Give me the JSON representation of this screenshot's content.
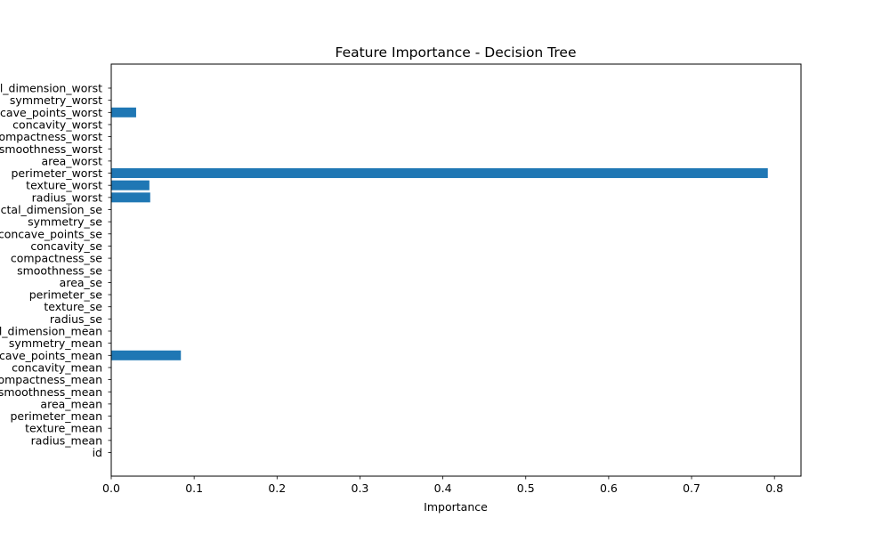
{
  "chart_data": {
    "type": "bar",
    "orientation": "horizontal",
    "title": "Feature Importance - Decision Tree",
    "xlabel": "Importance",
    "ylabel": "",
    "xlim": [
      0,
      0.832
    ],
    "x_ticks": [
      0.0,
      0.1,
      0.2,
      0.3,
      0.4,
      0.5,
      0.6,
      0.7,
      0.8
    ],
    "x_tick_labels": [
      "0.0",
      "0.1",
      "0.2",
      "0.3",
      "0.4",
      "0.5",
      "0.6",
      "0.7",
      "0.8"
    ],
    "grid": false,
    "bar_color": "#1f77b4",
    "categories": [
      "id",
      "radius_mean",
      "texture_mean",
      "perimeter_mean",
      "area_mean",
      "smoothness_mean",
      "compactness_mean",
      "concavity_mean",
      "concave_points_mean",
      "symmetry_mean",
      "fractal_dimension_mean",
      "radius_se",
      "texture_se",
      "perimeter_se",
      "area_se",
      "smoothness_se",
      "compactness_se",
      "concavity_se",
      "concave_points_se",
      "symmetry_se",
      "fractal_dimension_se",
      "radius_worst",
      "texture_worst",
      "perimeter_worst",
      "area_worst",
      "smoothness_worst",
      "compactness_worst",
      "concavity_worst",
      "concave_points_worst",
      "symmetry_worst",
      "fractal_dimension_worst"
    ],
    "values": [
      0,
      0,
      0,
      0,
      0,
      0,
      0,
      0,
      0.084,
      0,
      0,
      0,
      0,
      0,
      0,
      0,
      0,
      0,
      0,
      0,
      0,
      0.047,
      0.046,
      0.792,
      0,
      0,
      0,
      0,
      0.03,
      0,
      0
    ]
  }
}
